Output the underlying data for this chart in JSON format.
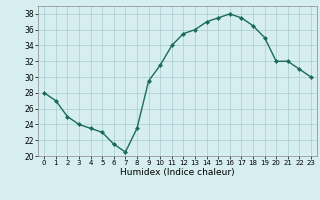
{
  "x": [
    0,
    1,
    2,
    3,
    4,
    5,
    6,
    7,
    8,
    9,
    10,
    11,
    12,
    13,
    14,
    15,
    16,
    17,
    18,
    19,
    20,
    21,
    22,
    23
  ],
  "y": [
    28,
    27,
    25,
    24,
    23.5,
    23,
    21.5,
    20.5,
    23.5,
    29.5,
    31.5,
    34,
    35.5,
    36,
    37,
    37.5,
    38,
    37.5,
    36.5,
    35,
    32,
    32,
    31,
    30
  ],
  "line_color": "#1a6b5a",
  "marker": "D",
  "marker_size": 2.0,
  "bg_color": "#d6eef0",
  "grid_color": "#a8cdd0",
  "xlabel": "Humidex (Indice chaleur)",
  "ylim": [
    20,
    39
  ],
  "xlim": [
    -0.5,
    23.5
  ],
  "yticks": [
    20,
    22,
    24,
    26,
    28,
    30,
    32,
    34,
    36,
    38
  ],
  "xticks": [
    0,
    1,
    2,
    3,
    4,
    5,
    6,
    7,
    8,
    9,
    10,
    11,
    12,
    13,
    14,
    15,
    16,
    17,
    18,
    19,
    20,
    21,
    22,
    23
  ]
}
